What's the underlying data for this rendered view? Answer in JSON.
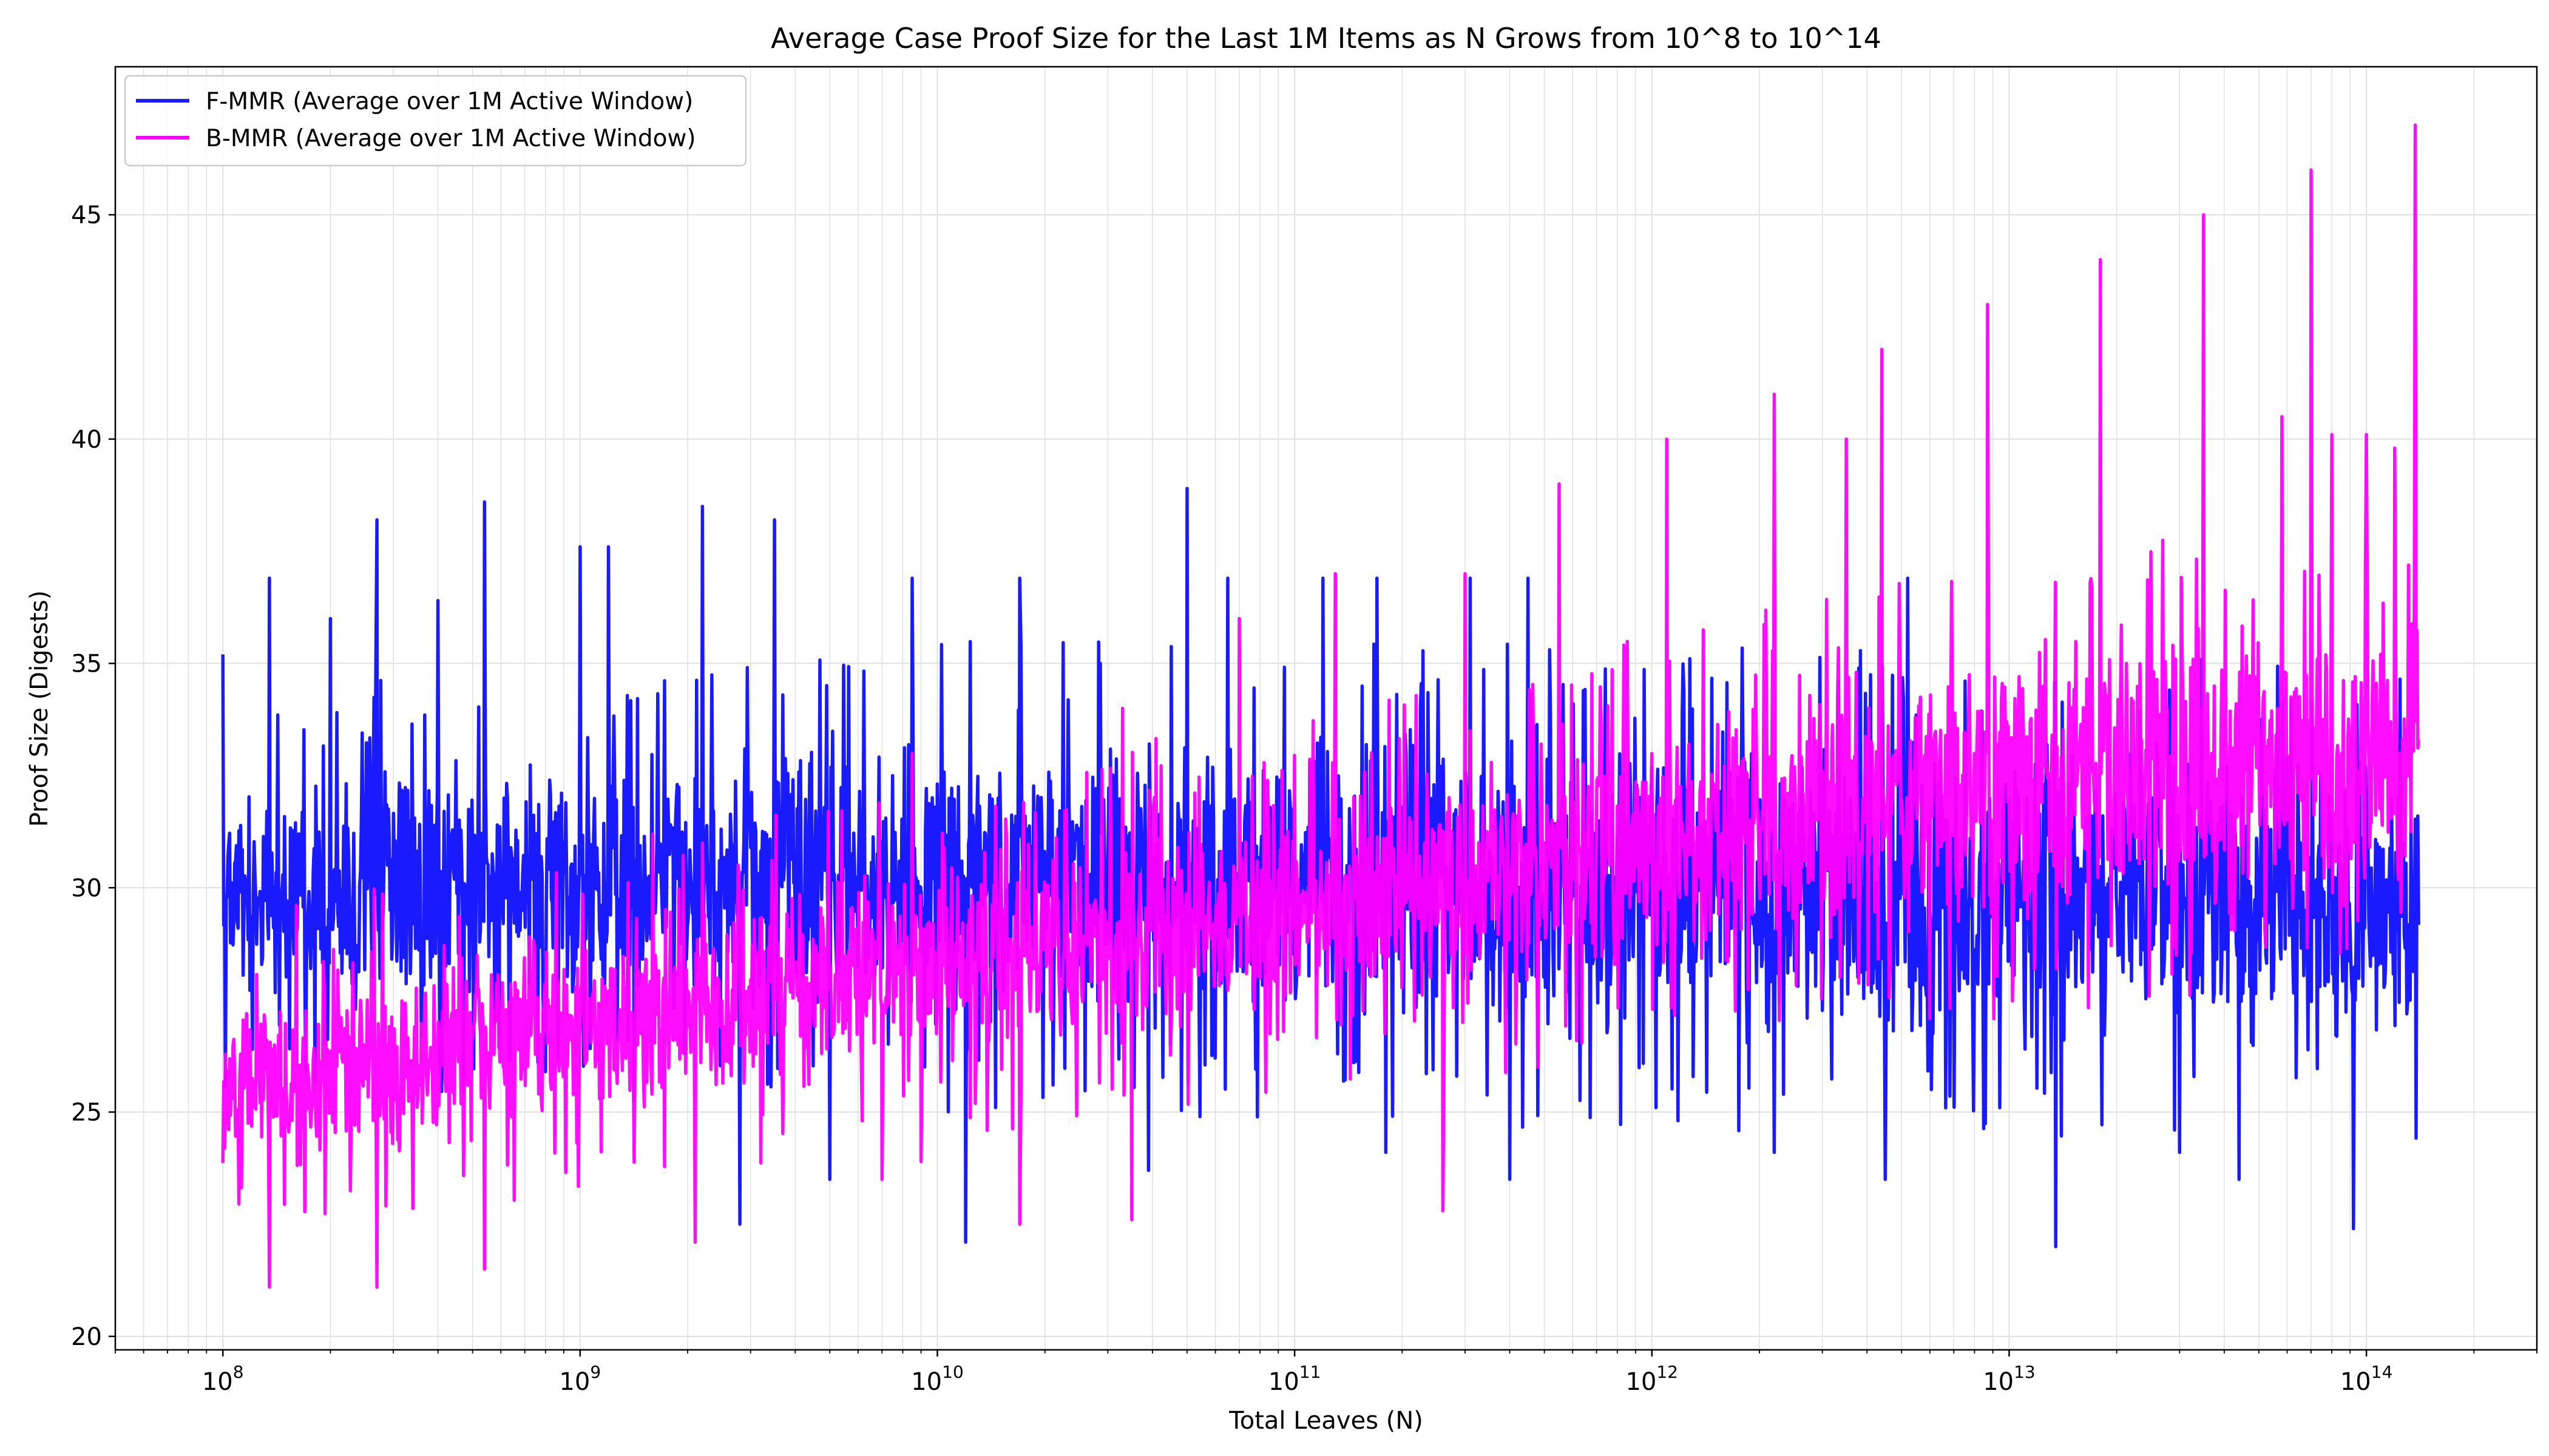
{
  "chart_data": {
    "type": "line",
    "title": "Average Case Proof Size for the Last 1M Items as N Grows from 10^8 to 10^14",
    "xlabel": "Total Leaves (N)",
    "ylabel": "Proof Size (Digests)",
    "xscale": "log",
    "xlim": [
      50000000,
      300000000000000
    ],
    "ylim": [
      19.7,
      48.3
    ],
    "grid": true,
    "legend_position": "top-left",
    "x_ticks": [
      {
        "value": 100000000,
        "base": "10",
        "exp": "8"
      },
      {
        "value": 1000000000,
        "base": "10",
        "exp": "9"
      },
      {
        "value": 10000000000,
        "base": "10",
        "exp": "10"
      },
      {
        "value": 100000000000,
        "base": "10",
        "exp": "11"
      },
      {
        "value": 1000000000000,
        "base": "10",
        "exp": "12"
      },
      {
        "value": 10000000000000,
        "base": "10",
        "exp": "13"
      },
      {
        "value": 100000000000000,
        "base": "10",
        "exp": "14"
      }
    ],
    "y_ticks": [
      "20",
      "25",
      "30",
      "35",
      "40",
      "45"
    ],
    "series": [
      {
        "name": "F-MMR (Average over 1M Active Window)",
        "color": "#1a1aff",
        "x_range": [
          100000000,
          140000000000000
        ],
        "center_trend": [
          [
            8,
            29.8
          ],
          [
            10,
            30.2
          ],
          [
            12,
            30.2
          ],
          [
            13,
            29.8
          ],
          [
            14.146,
            29.8
          ]
        ],
        "typical_band": [
          [
            8,
            27.0,
            33.0
          ],
          [
            10,
            26.5,
            34.0
          ],
          [
            12,
            26.0,
            34.0
          ],
          [
            14.146,
            25.8,
            33.5
          ]
        ],
        "x_peaks": [
          [
            100000000,
            35.2
          ],
          [
            135000000,
            36.9
          ],
          [
            200000000,
            36.0
          ],
          [
            270000000,
            38.2
          ],
          [
            400000000,
            36.4
          ],
          [
            540000000,
            38.6
          ],
          [
            1000000000,
            37.6
          ],
          [
            1200000000,
            37.6
          ],
          [
            2200000000,
            38.5
          ],
          [
            3500000000,
            38.2
          ],
          [
            8500000000,
            36.9
          ],
          [
            17000000000,
            36.9
          ],
          [
            50000000000,
            38.9
          ],
          [
            65000000000,
            36.9
          ],
          [
            120000000000,
            36.9
          ],
          [
            170000000000,
            36.9
          ],
          [
            310000000000,
            36.9
          ],
          [
            450000000000,
            36.9
          ],
          [
            5200000000000,
            36.9
          ]
        ],
        "x_troughs": [
          [
            12000000000,
            22.1
          ],
          [
            2800000000,
            22.5
          ],
          [
            13500000000000,
            22.0
          ],
          [
            92000000000000,
            22.4
          ],
          [
            800000000,
            25.9
          ],
          [
            5000000000,
            23.5
          ],
          [
            39000000000,
            23.7
          ],
          [
            180000000000,
            24.1
          ],
          [
            400000000000,
            23.5
          ],
          [
            2200000000000,
            24.1
          ],
          [
            4500000000000,
            23.5
          ],
          [
            30000000000000,
            24.1
          ],
          [
            44000000000000,
            23.5
          ]
        ]
      },
      {
        "name": "B-MMR (Average over 1M Active Window)",
        "color": "#ff00ff",
        "x_range": [
          100000000,
          140000000000000
        ],
        "center_trend": [
          [
            8,
            25.5
          ],
          [
            9,
            26.8
          ],
          [
            10,
            28.0
          ],
          [
            11,
            29.3
          ],
          [
            12,
            30.5
          ],
          [
            13,
            32.0
          ],
          [
            14.146,
            32.8
          ]
        ],
        "typical_band": [
          [
            8,
            23.2,
            27.8
          ],
          [
            9,
            24.5,
            29.5
          ],
          [
            10,
            25.8,
            31.0
          ],
          [
            11,
            26.8,
            32.5
          ],
          [
            12,
            27.5,
            34.2
          ],
          [
            13,
            28.5,
            36.0
          ],
          [
            14.146,
            29.0,
            37.0
          ]
        ],
        "x_peaks": [
          [
            270000000,
            28.0
          ],
          [
            2200000000,
            31.0
          ],
          [
            8500000000,
            33.0
          ],
          [
            33000000000,
            34.0
          ],
          [
            70000000000,
            36.0
          ],
          [
            130000000000,
            37.0
          ],
          [
            300000000000,
            37.0
          ],
          [
            550000000000,
            39.0
          ],
          [
            1100000000000,
            40.0
          ],
          [
            2200000000000,
            41.0
          ],
          [
            3500000000000,
            40.0
          ],
          [
            4400000000000,
            42.0
          ],
          [
            8700000000000,
            43.0
          ],
          [
            18000000000000,
            44.0
          ],
          [
            35000000000000,
            45.0
          ],
          [
            58000000000000,
            40.5
          ],
          [
            70000000000000,
            46.0
          ],
          [
            137000000000000,
            47.0
          ],
          [
            80000000000000,
            40.1
          ],
          [
            100000000000000,
            40.1
          ],
          [
            120000000000000,
            39.8
          ]
        ],
        "x_troughs": [
          [
            135000000,
            21.1
          ],
          [
            270000000,
            21.1
          ],
          [
            540000000,
            21.5
          ],
          [
            2100000000,
            22.1
          ],
          [
            17000000000,
            22.5
          ],
          [
            35000000000,
            22.6
          ],
          [
            260000000000,
            22.8
          ],
          [
            7000000000,
            23.5
          ],
          [
            9000000000,
            23.9
          ]
        ]
      }
    ]
  }
}
